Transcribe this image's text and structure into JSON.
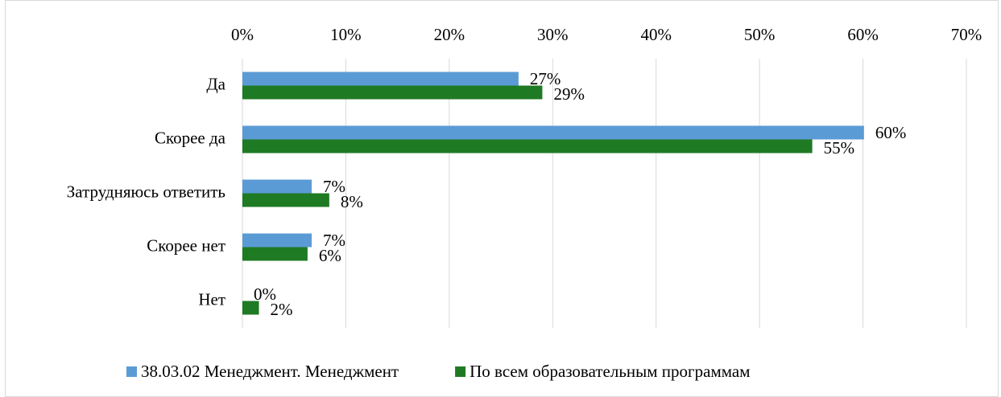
{
  "chart_data": {
    "type": "hbar",
    "categories": [
      "Да",
      "Скорее да",
      "Затрудняюсь ответить",
      "Скорее нет",
      "Нет"
    ],
    "series": [
      {
        "name": "38.03.02 Менеджмент. Менеджмент",
        "color": "#5b9bd5",
        "values": [
          26.7,
          60.1,
          6.7,
          6.7,
          0
        ],
        "value_labels": [
          "27%",
          "60%",
          "7%",
          "7%",
          "0%"
        ]
      },
      {
        "name": "По всем образовательным программам",
        "color": "#1f7a24",
        "values": [
          29.0,
          55.1,
          8.4,
          6.3,
          1.6
        ],
        "value_labels": [
          "29%",
          "55%",
          "8%",
          "6%",
          "2%"
        ]
      }
    ],
    "xlim": [
      0,
      70
    ],
    "xticks": [
      {
        "value": 0,
        "label": "0%"
      },
      {
        "value": 10,
        "label": "10%"
      },
      {
        "value": 20,
        "label": "20%"
      },
      {
        "value": 30,
        "label": "30%"
      },
      {
        "value": 40,
        "label": "40%"
      },
      {
        "value": 50,
        "label": "50%"
      },
      {
        "value": 60,
        "label": "60%"
      },
      {
        "value": 70,
        "label": "70%"
      }
    ],
    "grid": true,
    "legend": "bottom"
  }
}
